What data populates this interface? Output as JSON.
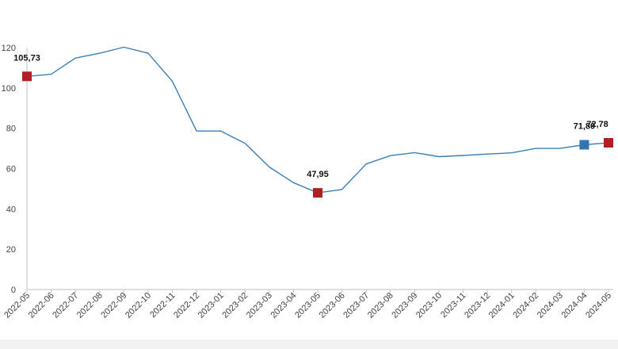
{
  "chart_data": {
    "type": "line",
    "categories": [
      "2022-05",
      "2022-06",
      "2022-07",
      "2022-08",
      "2022-09",
      "2022-10",
      "2022-11",
      "2022-12",
      "2023-01",
      "2023-02",
      "2023-03",
      "2023-04",
      "2023-05",
      "2023-06",
      "2023-07",
      "2023-08",
      "2023-09",
      "2023-10",
      "2023-11",
      "2023-12",
      "2024-01",
      "2024-02",
      "2024-03",
      "2024-04",
      "2024-05"
    ],
    "series": [
      {
        "values": [
          105.73,
          106.8,
          114.8,
          117.2,
          120.2,
          117.2,
          103.3,
          78.6,
          78.6,
          72.5,
          60.8,
          53.0,
          47.95,
          49.6,
          62.3,
          66.4,
          67.9,
          65.9,
          66.5,
          67.2,
          67.8,
          70.0,
          70.0,
          71.8,
          72.78
        ]
      }
    ],
    "highlights": [
      {
        "index": 0,
        "label": "105,73",
        "color": "#b01f24"
      },
      {
        "index": 12,
        "label": "47,95",
        "color": "#b01f24"
      },
      {
        "index": 23,
        "label": "71,80",
        "color": "#2e75b6"
      },
      {
        "index": 24,
        "label": "72,78",
        "color": "#b01f24"
      }
    ],
    "ylim": [
      0,
      120
    ],
    "yticks": [
      0,
      20,
      40,
      60,
      80,
      100,
      120
    ],
    "title": "",
    "xlabel": "",
    "ylabel": "",
    "grid": false,
    "line_color": "#3a7fb8",
    "axis_color": "#bfbfbf",
    "tick_text_color": "#404040",
    "bottom_band_color": "#f2f2f2"
  }
}
